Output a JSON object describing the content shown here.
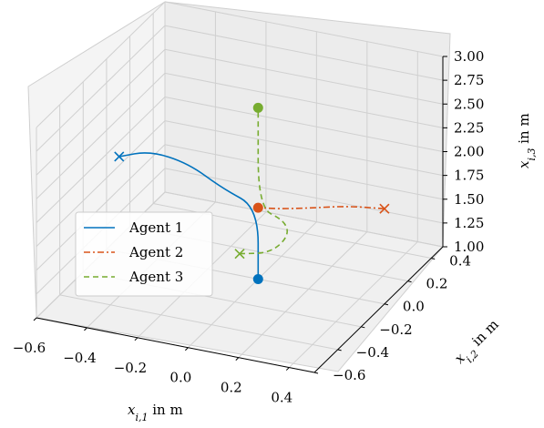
{
  "chart_data": {
    "type": "line3d",
    "title": "",
    "xlabel": "x_{i,1} in m",
    "ylabel": "x_{i,2} in m",
    "zlabel": "x_{i,3} in m",
    "xlim": [
      -0.6,
      0.5
    ],
    "ylim": [
      -0.6,
      0.5
    ],
    "zlim": [
      1.0,
      3.0
    ],
    "x_ticks": [
      "−0.6",
      "−0.4",
      "−0.2",
      "0.0",
      "0.2",
      "0.4"
    ],
    "y_ticks": [
      "−0.6",
      "−0.4",
      "−0.2",
      "0.0",
      "0.2",
      "0.4"
    ],
    "z_ticks": [
      "1.00",
      "1.25",
      "1.50",
      "1.75",
      "2.00",
      "2.25",
      "2.50",
      "2.75",
      "3.00"
    ],
    "grid": true,
    "legend_position": "center-left",
    "series": [
      {
        "name": "Agent 1",
        "color": "#0072bd",
        "linestyle": "solid",
        "points": [
          [
            -0.55,
            0.0,
            2.0
          ],
          [
            -0.45,
            0.05,
            2.05
          ],
          [
            -0.3,
            0.05,
            2.0
          ],
          [
            -0.15,
            0.02,
            1.85
          ],
          [
            0.0,
            0.0,
            1.75
          ],
          [
            0.0,
            0.0,
            1.0
          ]
        ],
        "start_marker": "x",
        "end_marker": "circle"
      },
      {
        "name": "Agent 2",
        "color": "#d95319",
        "linestyle": "dashdot",
        "points": [
          [
            0.5,
            0.0,
            2.0
          ],
          [
            0.35,
            0.0,
            1.95
          ],
          [
            0.2,
            0.0,
            1.85
          ],
          [
            0.08,
            0.0,
            1.78
          ],
          [
            0.0,
            0.0,
            1.75
          ]
        ],
        "start_marker": "x",
        "end_marker": "circle"
      },
      {
        "name": "Agent 3",
        "color": "#77ac30",
        "linestyle": "dashed",
        "points": [
          [
            -0.05,
            -0.05,
            1.3
          ],
          [
            0.05,
            0.0,
            1.3
          ],
          [
            0.1,
            0.05,
            1.45
          ],
          [
            0.08,
            0.05,
            1.6
          ],
          [
            0.0,
            0.0,
            1.75
          ],
          [
            0.0,
            0.0,
            2.8
          ]
        ],
        "start_marker": "x",
        "end_marker": "circle"
      }
    ]
  }
}
